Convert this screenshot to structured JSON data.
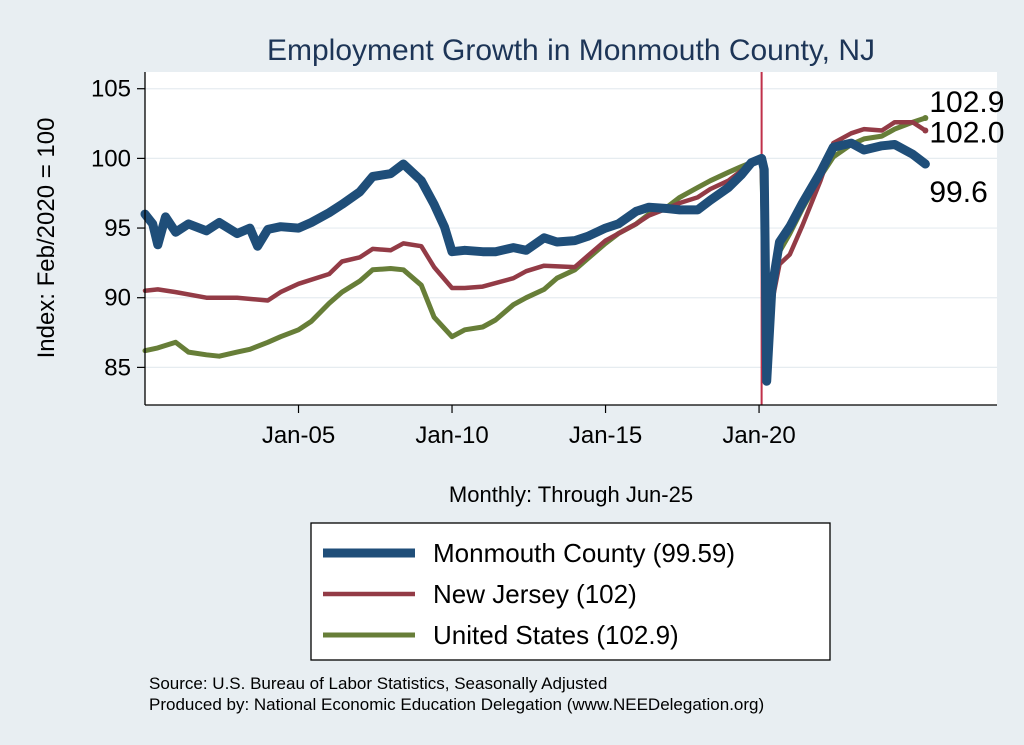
{
  "chart_data": {
    "type": "line",
    "title": "Employment Growth in Monmouth  County, NJ",
    "xlabel": "Monthly: Through Jun-25",
    "ylabel": "Index: Feb/2020 = 100",
    "xlim": [
      "2000-01",
      "2027-10"
    ],
    "ylim": [
      82.3,
      106.2
    ],
    "yticks": [
      85,
      90,
      95,
      100,
      105
    ],
    "xticks": [
      {
        "date": "2005-01",
        "label": "Jan-05"
      },
      {
        "date": "2010-01",
        "label": "Jan-10"
      },
      {
        "date": "2015-01",
        "label": "Jan-15"
      },
      {
        "date": "2020-01",
        "label": "Jan-20"
      }
    ],
    "grid": true,
    "legend_position": "bottom",
    "vline": {
      "date": "2020-02",
      "color": "#c0304a"
    },
    "series": [
      {
        "name": "Monmouth  County (99.59)",
        "color": "#1f4e79",
        "end_label": "99.6",
        "points": [
          [
            "2000-01",
            96.0
          ],
          [
            "2000-04",
            95.3
          ],
          [
            "2000-06",
            93.8
          ],
          [
            "2000-09",
            95.8
          ],
          [
            "2001-01",
            94.7
          ],
          [
            "2001-06",
            95.3
          ],
          [
            "2002-01",
            94.8
          ],
          [
            "2002-06",
            95.4
          ],
          [
            "2003-01",
            94.6
          ],
          [
            "2003-06",
            95.0
          ],
          [
            "2003-09",
            93.7
          ],
          [
            "2004-01",
            94.9
          ],
          [
            "2004-06",
            95.1
          ],
          [
            "2005-01",
            95.0
          ],
          [
            "2005-06",
            95.4
          ],
          [
            "2006-01",
            96.1
          ],
          [
            "2006-06",
            96.7
          ],
          [
            "2007-01",
            97.6
          ],
          [
            "2007-06",
            98.7
          ],
          [
            "2008-01",
            98.9
          ],
          [
            "2008-06",
            99.6
          ],
          [
            "2009-01",
            98.4
          ],
          [
            "2009-06",
            96.7
          ],
          [
            "2009-10",
            95.1
          ],
          [
            "2010-01",
            93.3
          ],
          [
            "2010-06",
            93.4
          ],
          [
            "2011-01",
            93.3
          ],
          [
            "2011-06",
            93.3
          ],
          [
            "2012-01",
            93.6
          ],
          [
            "2012-06",
            93.4
          ],
          [
            "2013-01",
            94.3
          ],
          [
            "2013-06",
            94.0
          ],
          [
            "2014-01",
            94.1
          ],
          [
            "2014-06",
            94.4
          ],
          [
            "2015-01",
            95.0
          ],
          [
            "2015-06",
            95.3
          ],
          [
            "2016-01",
            96.2
          ],
          [
            "2016-06",
            96.5
          ],
          [
            "2017-01",
            96.4
          ],
          [
            "2017-06",
            96.3
          ],
          [
            "2018-01",
            96.3
          ],
          [
            "2018-06",
            97.0
          ],
          [
            "2019-01",
            97.9
          ],
          [
            "2019-06",
            98.8
          ],
          [
            "2019-10",
            99.7
          ],
          [
            "2020-02",
            100.0
          ],
          [
            "2020-03",
            99.2
          ],
          [
            "2020-04",
            84.0
          ],
          [
            "2020-06",
            90.6
          ],
          [
            "2020-09",
            94.0
          ],
          [
            "2021-01",
            95.1
          ],
          [
            "2021-06",
            96.8
          ],
          [
            "2022-01",
            99.0
          ],
          [
            "2022-06",
            100.8
          ],
          [
            "2023-01",
            101.1
          ],
          [
            "2023-06",
            100.6
          ],
          [
            "2024-01",
            100.9
          ],
          [
            "2024-06",
            101.0
          ],
          [
            "2025-01",
            100.3
          ],
          [
            "2025-06",
            99.6
          ]
        ]
      },
      {
        "name": "New Jersey (102)",
        "color": "#933b46",
        "end_label": "102.0",
        "points": [
          [
            "2000-01",
            90.5
          ],
          [
            "2000-06",
            90.6
          ],
          [
            "2001-01",
            90.4
          ],
          [
            "2002-01",
            90.0
          ],
          [
            "2003-01",
            90.0
          ],
          [
            "2004-01",
            89.8
          ],
          [
            "2004-06",
            90.4
          ],
          [
            "2005-01",
            91.0
          ],
          [
            "2006-01",
            91.7
          ],
          [
            "2006-06",
            92.6
          ],
          [
            "2007-01",
            92.9
          ],
          [
            "2007-06",
            93.5
          ],
          [
            "2008-01",
            93.4
          ],
          [
            "2008-06",
            93.9
          ],
          [
            "2009-01",
            93.7
          ],
          [
            "2009-06",
            92.2
          ],
          [
            "2010-01",
            90.7
          ],
          [
            "2010-06",
            90.7
          ],
          [
            "2011-01",
            90.8
          ],
          [
            "2012-01",
            91.4
          ],
          [
            "2012-06",
            91.9
          ],
          [
            "2013-01",
            92.3
          ],
          [
            "2014-01",
            92.2
          ],
          [
            "2014-06",
            93.0
          ],
          [
            "2015-01",
            94.1
          ],
          [
            "2015-06",
            94.6
          ],
          [
            "2016-01",
            95.3
          ],
          [
            "2016-06",
            95.9
          ],
          [
            "2017-01",
            96.4
          ],
          [
            "2017-06",
            96.8
          ],
          [
            "2018-01",
            97.2
          ],
          [
            "2018-06",
            97.8
          ],
          [
            "2019-01",
            98.4
          ],
          [
            "2019-06",
            99.1
          ],
          [
            "2020-02",
            100.0
          ],
          [
            "2020-04",
            84.3
          ],
          [
            "2020-06",
            89.6
          ],
          [
            "2020-09",
            92.4
          ],
          [
            "2021-01",
            93.1
          ],
          [
            "2021-06",
            95.2
          ],
          [
            "2022-01",
            98.4
          ],
          [
            "2022-06",
            101.1
          ],
          [
            "2023-01",
            101.8
          ],
          [
            "2023-06",
            102.1
          ],
          [
            "2024-01",
            102.0
          ],
          [
            "2024-06",
            102.6
          ],
          [
            "2025-01",
            102.6
          ],
          [
            "2025-06",
            102.0
          ]
        ]
      },
      {
        "name": "United States (102.9)",
        "color": "#677e38",
        "end_label": "102.9",
        "points": [
          [
            "2000-01",
            86.2
          ],
          [
            "2000-06",
            86.4
          ],
          [
            "2001-01",
            86.8
          ],
          [
            "2001-06",
            86.1
          ],
          [
            "2002-01",
            85.9
          ],
          [
            "2002-06",
            85.8
          ],
          [
            "2003-01",
            86.1
          ],
          [
            "2003-06",
            86.3
          ],
          [
            "2004-01",
            86.8
          ],
          [
            "2004-06",
            87.2
          ],
          [
            "2005-01",
            87.7
          ],
          [
            "2005-06",
            88.3
          ],
          [
            "2006-01",
            89.6
          ],
          [
            "2006-06",
            90.4
          ],
          [
            "2007-01",
            91.2
          ],
          [
            "2007-06",
            92.0
          ],
          [
            "2008-01",
            92.1
          ],
          [
            "2008-06",
            92.0
          ],
          [
            "2009-01",
            90.9
          ],
          [
            "2009-06",
            88.6
          ],
          [
            "2010-01",
            87.2
          ],
          [
            "2010-06",
            87.7
          ],
          [
            "2011-01",
            87.9
          ],
          [
            "2011-06",
            88.4
          ],
          [
            "2012-01",
            89.5
          ],
          [
            "2012-06",
            90.0
          ],
          [
            "2013-01",
            90.6
          ],
          [
            "2013-06",
            91.4
          ],
          [
            "2014-01",
            92.0
          ],
          [
            "2014-06",
            92.8
          ],
          [
            "2015-01",
            93.9
          ],
          [
            "2015-06",
            94.6
          ],
          [
            "2016-01",
            95.3
          ],
          [
            "2016-06",
            96.0
          ],
          [
            "2017-01",
            96.5
          ],
          [
            "2017-06",
            97.2
          ],
          [
            "2018-01",
            97.9
          ],
          [
            "2018-06",
            98.4
          ],
          [
            "2019-01",
            99.0
          ],
          [
            "2019-06",
            99.4
          ],
          [
            "2020-02",
            100.0
          ],
          [
            "2020-04",
            86.2
          ],
          [
            "2020-06",
            90.4
          ],
          [
            "2020-09",
            93.3
          ],
          [
            "2021-01",
            94.6
          ],
          [
            "2021-06",
            96.4
          ],
          [
            "2022-01",
            98.7
          ],
          [
            "2022-06",
            100.1
          ],
          [
            "2023-01",
            101.0
          ],
          [
            "2023-06",
            101.4
          ],
          [
            "2024-01",
            101.6
          ],
          [
            "2024-06",
            102.1
          ],
          [
            "2025-01",
            102.6
          ],
          [
            "2025-06",
            102.9
          ]
        ]
      }
    ]
  },
  "source_line": "Source: U.S. Bureau of Labor Statistics, Seasonally Adjusted",
  "produced_line": "Produced by: National Economic Education Delegation (www.NEEDelegation.org)"
}
